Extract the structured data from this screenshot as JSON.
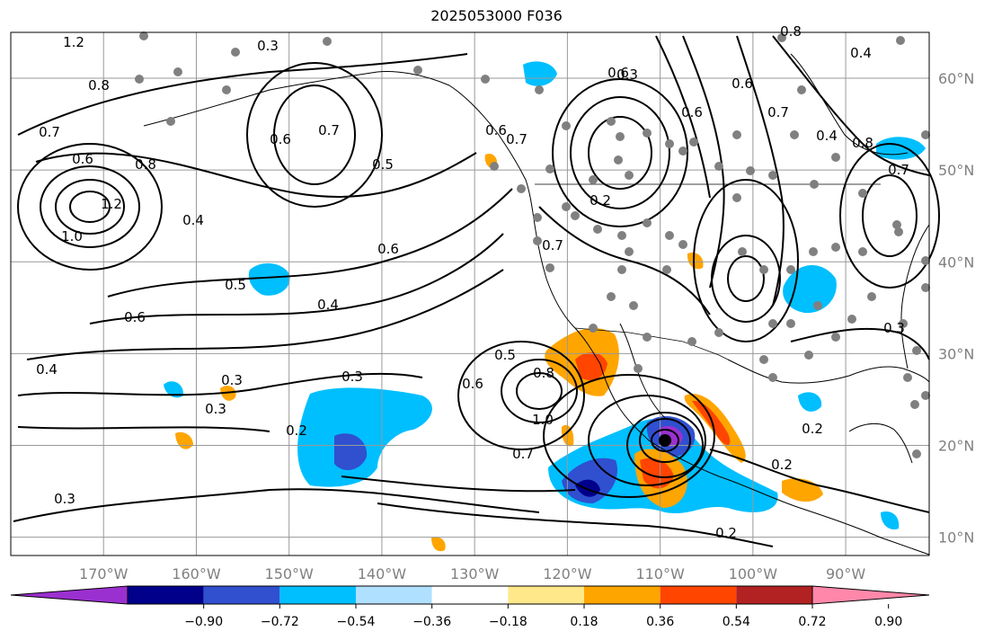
{
  "title": "2025053000 F036",
  "axes": {
    "lon_labels": [
      "170°W",
      "160°W",
      "150°W",
      "140°W",
      "130°W",
      "120°W",
      "110°W",
      "100°W",
      "90°W"
    ],
    "lat_labels": [
      "60°N",
      "50°N",
      "40°N",
      "30°N",
      "20°N",
      "10°N"
    ],
    "lon_range": [
      -180,
      -81
    ],
    "lat_range": [
      8,
      65
    ]
  },
  "colorbar": {
    "ticks": [
      "−0.90",
      "−0.72",
      "−0.54",
      "−0.36",
      "−0.18",
      "0.18",
      "0.36",
      "0.54",
      "0.72",
      "0.90"
    ],
    "colors": [
      "#9b30d0",
      "#00008b",
      "#3050d0",
      "#00bfff",
      "#b0e0ff",
      "#ffffff",
      "#ffe88a",
      "#ffa500",
      "#ff4500",
      "#b22222",
      "#ff88aa"
    ]
  },
  "contour_labels": [
    "0.3",
    "1.2",
    "0.8",
    "0.7",
    "0.6",
    "0.8",
    "0.6",
    "1.2",
    "1.0",
    "0.4",
    "0.5",
    "0.7",
    "0.6",
    "0.6",
    "0.5",
    "0.4",
    "0.7",
    "0.6",
    "0.3",
    "0.4",
    "0.3",
    "0.3",
    "0.2",
    "0.3",
    "0.2",
    "0.7",
    "0.5",
    "0.8",
    "1.0",
    "0.6",
    "0.7",
    "0.6",
    "0.2",
    "0.2",
    "0.2",
    "0.3",
    "0.6",
    "0.7",
    "0.4",
    "0.8",
    "0.7",
    "0.3",
    "0.6",
    "0.8",
    "0.4"
  ]
}
